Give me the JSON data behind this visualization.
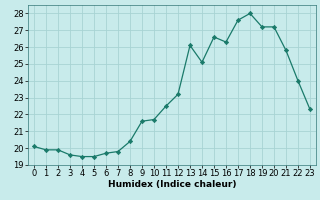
{
  "x": [
    0,
    1,
    2,
    3,
    4,
    5,
    6,
    7,
    8,
    9,
    10,
    11,
    12,
    13,
    14,
    15,
    16,
    17,
    18,
    19,
    20,
    21,
    22,
    23
  ],
  "y": [
    20.1,
    19.9,
    19.9,
    19.6,
    19.5,
    19.5,
    19.7,
    19.8,
    20.4,
    21.6,
    21.7,
    22.5,
    23.2,
    26.1,
    25.1,
    26.6,
    26.3,
    27.6,
    28.0,
    27.2,
    27.2,
    25.8,
    24.0,
    22.3
  ],
  "line_color": "#1a7a6a",
  "marker": "D",
  "marker_size": 2.2,
  "bg_color": "#c8ebeb",
  "grid_color": "#a8d4d4",
  "xlabel": "Humidex (Indice chaleur)",
  "ylim": [
    19,
    28.5
  ],
  "yticks": [
    19,
    20,
    21,
    22,
    23,
    24,
    25,
    26,
    27,
    28
  ],
  "xticks": [
    0,
    1,
    2,
    3,
    4,
    5,
    6,
    7,
    8,
    9,
    10,
    11,
    12,
    13,
    14,
    15,
    16,
    17,
    18,
    19,
    20,
    21,
    22,
    23
  ],
  "xlim": [
    -0.5,
    23.5
  ],
  "label_fontsize": 6.5,
  "tick_fontsize": 6.0
}
